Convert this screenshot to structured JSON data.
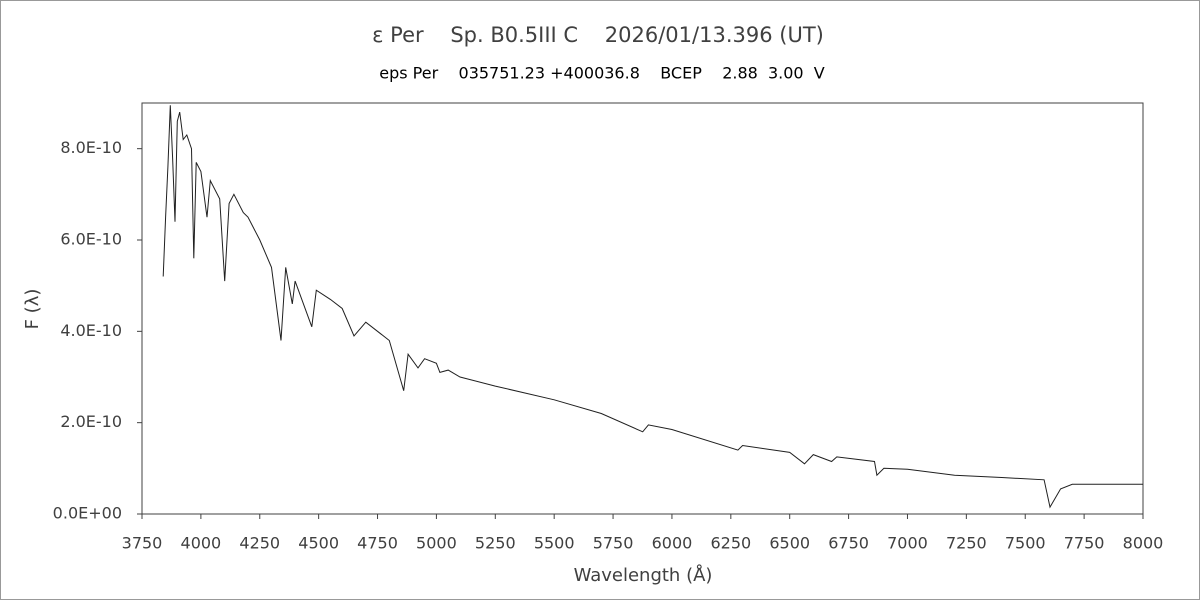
{
  "chart_data": {
    "type": "line",
    "title": "ε Per    Sp. B0.5III C    2026/01/13.396 (UT)",
    "subtitle": "eps Per    035751.23 +400036.8    BCEP    2.88  3.00  V",
    "x_label": "Wavelength (Å)",
    "y_label": "F (λ)",
    "x": [
      3840,
      3850,
      3860,
      3870,
      3880,
      3890,
      3900,
      3910,
      3925,
      3940,
      3960,
      3970,
      3980,
      4000,
      4026,
      4040,
      4080,
      4101,
      4120,
      4140,
      4180,
      4200,
      4250,
      4300,
      4340,
      4360,
      4388,
      4400,
      4471,
      4490,
      4550,
      4600,
      4650,
      4700,
      4750,
      4800,
      4861,
      4880,
      4922,
      4950,
      5000,
      5015,
      5050,
      5100,
      5250,
      5500,
      5700,
      5876,
      5900,
      6000,
      6280,
      6300,
      6500,
      6563,
      6600,
      6678,
      6700,
      6860,
      6870,
      6900,
      7000,
      7200,
      7400,
      7580,
      7605,
      7650,
      7700,
      8000
    ],
    "series": [
      {
        "name": "F (λ)",
        "color": "#202020",
        "values": [
          5.2e-10,
          6.5e-10,
          7.6e-10,
          8.95e-10,
          7.8e-10,
          6.4e-10,
          8.6e-10,
          8.8e-10,
          8.2e-10,
          8.3e-10,
          8e-10,
          5.6e-10,
          7.7e-10,
          7.5e-10,
          6.5e-10,
          7.3e-10,
          6.9e-10,
          5.1e-10,
          6.8e-10,
          7e-10,
          6.6e-10,
          6.5e-10,
          6e-10,
          5.4e-10,
          3.8e-10,
          5.4e-10,
          4.6e-10,
          5.1e-10,
          4.1e-10,
          4.9e-10,
          4.7e-10,
          4.5e-10,
          3.9e-10,
          4.2e-10,
          4e-10,
          3.8e-10,
          2.7e-10,
          3.5e-10,
          3.2e-10,
          3.4e-10,
          3.3e-10,
          3.1e-10,
          3.15e-10,
          3e-10,
          2.8e-10,
          2.5e-10,
          2.2e-10,
          1.8e-10,
          1.95e-10,
          1.85e-10,
          1.4e-10,
          1.5e-10,
          1.35e-10,
          1.1e-10,
          1.3e-10,
          1.15e-10,
          1.25e-10,
          1.15e-10,
          8.5e-11,
          1e-10,
          9.8e-11,
          8.5e-11,
          8e-11,
          7.5e-11,
          1.5e-11,
          5.5e-11,
          6.5e-11,
          6.5e-11
        ]
      }
    ],
    "xlim": [
      3750,
      8000
    ],
    "xticks": [
      3750,
      4000,
      4250,
      4500,
      4750,
      5000,
      5250,
      5500,
      5750,
      6000,
      6250,
      6500,
      6750,
      7000,
      7250,
      7500,
      7750,
      8000
    ],
    "ylim": [
      0,
      9e-10
    ],
    "yticks": [
      {
        "value": 0,
        "label": "0.0E+00"
      },
      {
        "value": 2e-10,
        "label": "2.0E-10"
      },
      {
        "value": 4e-10,
        "label": "4.0E-10"
      },
      {
        "value": 6e-10,
        "label": "6.0E-10"
      },
      {
        "value": 8e-10,
        "label": "8.0E-10"
      }
    ]
  }
}
